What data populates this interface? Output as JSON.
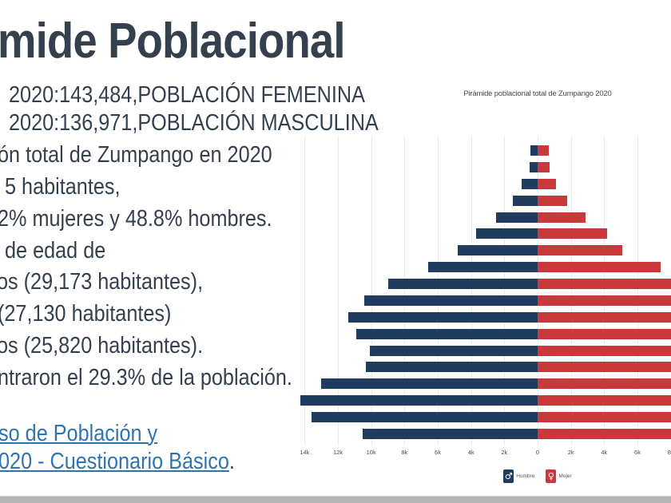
{
  "slide": {
    "title": "mide Poblacional",
    "stat_lines": [
      "2020:143,484,POBLACIÓN FEMENINA",
      "2020:136,971,POBLACIÓN MASCULINA"
    ],
    "body_lines": [
      "ón total de Zumpango en 2020",
      "5 habitantes,",
      "2% mujeres y 48.8% hombres.",
      "de edad de",
      "os (29,173 habitantes),",
      "(27,130 habitantes)",
      "os (25,820 habitantes).",
      "ntraron el 29.3% de la población."
    ],
    "links": [
      "so de Población y",
      "020 - Cuestionario Básico"
    ],
    "link_suffix": ".",
    "text_color": "#35404F",
    "link_color": "#2E74B5"
  },
  "chart_data": {
    "type": "bar",
    "variant": "population_pyramid",
    "title": "Pirámide poblacional total de Zumpango 2020",
    "row_order": "top_oldest_to_bottom_youngest",
    "x_ticks": [
      {
        "k": -14,
        "label": "14k"
      },
      {
        "k": -12,
        "label": "12k"
      },
      {
        "k": -10,
        "label": "10k"
      },
      {
        "k": -8,
        "label": "8k"
      },
      {
        "k": -6,
        "label": "6k"
      },
      {
        "k": -4,
        "label": "4k"
      },
      {
        "k": -2,
        "label": "2k"
      },
      {
        "k": 0,
        "label": "0"
      },
      {
        "k": 2,
        "label": "2k"
      },
      {
        "k": 4,
        "label": "4k"
      },
      {
        "k": 6,
        "label": "6k"
      },
      {
        "k": 8,
        "label": "8k"
      }
    ],
    "series": [
      {
        "name": "Hombre",
        "symbol": "♂",
        "side": "left",
        "color": "#1F3C5E",
        "values": [
          450,
          500,
          970,
          1500,
          2500,
          3700,
          4800,
          6600,
          9000,
          10400,
          11400,
          10900,
          10100,
          10300,
          13000,
          14400,
          13600,
          10500
        ]
      },
      {
        "name": "Mujer",
        "symbol": "♀",
        "side": "right",
        "color": "#C8393C",
        "values": [
          650,
          720,
          1100,
          1800,
          2900,
          4200,
          5100,
          7400,
          9400,
          10900,
          11900,
          11300,
          10600,
          10800,
          13400,
          14800,
          14000,
          10900
        ]
      }
    ],
    "axis_right_clipped_at": 8000,
    "legend_position": "bottom-center",
    "grid": true
  },
  "footer": {
    "band_color": "#b5b5b5"
  }
}
